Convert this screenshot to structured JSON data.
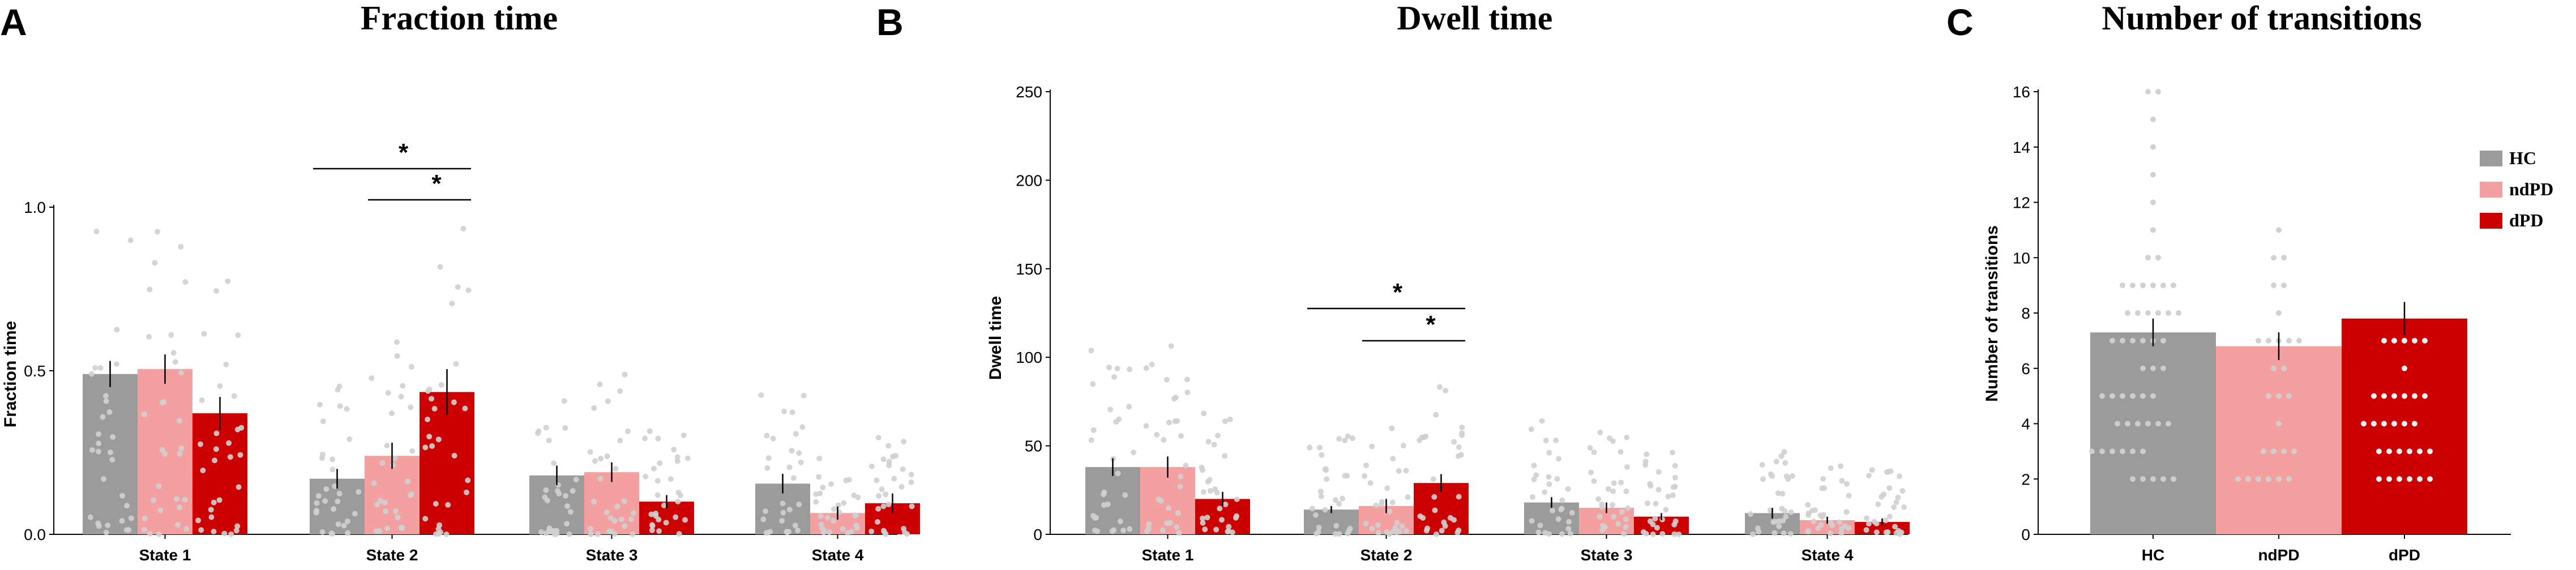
{
  "colors": {
    "HC": "#9b9b9b",
    "ndPD": "#f4a0a0",
    "dPD": "#cc0000",
    "dot": "#d0d0d0"
  },
  "chart_data": [
    {
      "panel": "A",
      "type": "bar",
      "title": "Fraction time",
      "ylabel": "Fraction time",
      "xlabel": "",
      "ylim": [
        0,
        1.0
      ],
      "yticks": [
        "0.0",
        "0.5",
        "1.0"
      ],
      "categories": [
        "State 1",
        "State 2",
        "State 3",
        "State 4"
      ],
      "series": [
        {
          "name": "HC",
          "values": [
            0.49,
            0.17,
            0.18,
            0.155
          ],
          "errors": [
            0.04,
            0.03,
            0.03,
            0.03
          ]
        },
        {
          "name": "ndPD",
          "values": [
            0.505,
            0.24,
            0.19,
            0.065
          ],
          "errors": [
            0.045,
            0.04,
            0.03,
            0.02
          ]
        },
        {
          "name": "dPD",
          "values": [
            0.37,
            0.435,
            0.1,
            0.095
          ],
          "errors": [
            0.05,
            0.07,
            0.02,
            0.03
          ]
        }
      ],
      "significance": [
        {
          "category": "State 2",
          "from": "HC",
          "to": "dPD",
          "label": "*"
        },
        {
          "category": "State 2",
          "from": "ndPD",
          "to": "dPD",
          "label": "*"
        }
      ]
    },
    {
      "panel": "B",
      "type": "bar",
      "title": "Dwell time",
      "ylabel": "Dwell time",
      "xlabel": "",
      "ylim": [
        0,
        250
      ],
      "yticks": [
        "0",
        "50",
        "100",
        "150",
        "200",
        "250"
      ],
      "categories": [
        "State 1",
        "State 2",
        "State 3",
        "State 4"
      ],
      "series": [
        {
          "name": "HC",
          "values": [
            38,
            14,
            18,
            12
          ],
          "errors": [
            5,
            2,
            3,
            3
          ]
        },
        {
          "name": "ndPD",
          "values": [
            38,
            16,
            15,
            8
          ],
          "errors": [
            6,
            4,
            3,
            2
          ]
        },
        {
          "name": "dPD",
          "values": [
            20,
            29,
            10,
            7
          ],
          "errors": [
            4,
            5,
            2,
            2
          ]
        }
      ],
      "significance": [
        {
          "category": "State 2",
          "from": "HC",
          "to": "dPD",
          "label": "*"
        },
        {
          "category": "State 2",
          "from": "ndPD",
          "to": "dPD",
          "label": "*"
        }
      ]
    },
    {
      "panel": "C",
      "type": "bar",
      "title": "Number of transitions",
      "ylabel": "Number of transitions",
      "xlabel": "",
      "ylim": [
        0,
        16
      ],
      "yticks": [
        "0",
        "2",
        "4",
        "6",
        "8",
        "10",
        "12",
        "14",
        "16"
      ],
      "categories": [
        "HC",
        "ndPD",
        "dPD"
      ],
      "values": [
        7.3,
        6.8,
        7.8
      ],
      "errors": [
        0.5,
        0.5,
        0.6
      ],
      "legend": [
        "HC",
        "ndPD",
        "dPD"
      ],
      "legend_position": "top-right"
    }
  ]
}
